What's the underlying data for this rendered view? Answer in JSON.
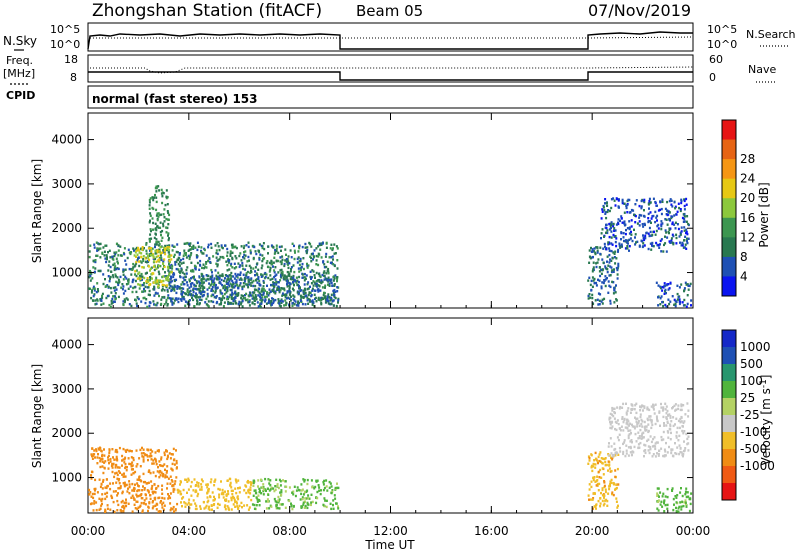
{
  "title": "Zhongshan Station (fitACF)",
  "beam": "Beam 05",
  "date": "07/Nov/2019",
  "cpid_text": "normal (fast stereo) 153",
  "left_labels": {
    "nsky": "N.Sky",
    "freq": "Freq.",
    "mhz": "[MHz]",
    "cpid": "CPID"
  },
  "right_labels": {
    "nsearch": "N.Search",
    "nave": "Nave"
  },
  "nsky_ticks": [
    "10^5",
    "10^0"
  ],
  "freq_ticks": [
    "18",
    "8"
  ],
  "nsearch_ticks": [
    "10^5",
    "10^0"
  ],
  "nave_ticks": [
    "60",
    "0"
  ],
  "x_tick_labels": [
    "00:00",
    "04:00",
    "08:00",
    "12:00",
    "16:00",
    "20:00",
    "00:00"
  ],
  "xlabel": "Time UT",
  "colors": {
    "power": [
      "#0a14f0",
      "#1e50b4",
      "#287850",
      "#3c9650",
      "#8cc83c",
      "#e6c814",
      "#f59614",
      "#e66414",
      "#e61414"
    ],
    "velocity": [
      "#e61414",
      "#f05a14",
      "#f08c14",
      "#f0be28",
      "#c8c8c8",
      "#b4d264",
      "#50b43c",
      "#28966e",
      "#1e50b4",
      "#1428c8"
    ]
  },
  "chart_data": [
    {
      "type": "heatmap",
      "name": "power",
      "ylabel": "Slant Range [km]",
      "yticks": [
        1000,
        2000,
        3000,
        4000
      ],
      "ylim": [
        200,
        4600
      ],
      "xlim": [
        0,
        24
      ],
      "colorbar": {
        "label": "Power [dB]",
        "ticks": [
          "4",
          "8",
          "12",
          "16",
          "20",
          "24",
          "28"
        ],
        "range": [
          0,
          32
        ]
      },
      "echo_regions": [
        {
          "t": [
            0.0,
            9.9
          ],
          "r": [
            250,
            1700
          ],
          "value": 10
        },
        {
          "t": [
            1.8,
            3.3
          ],
          "r": [
            700,
            1600
          ],
          "value": 20
        },
        {
          "t": [
            3.2,
            9.9
          ],
          "r": [
            300,
            1000
          ],
          "value": 8
        },
        {
          "t": [
            2.4,
            3.2
          ],
          "r": [
            1700,
            3000
          ],
          "value": 12
        },
        {
          "t": [
            19.8,
            21.0
          ],
          "r": [
            300,
            1600
          ],
          "value": 8
        },
        {
          "t": [
            20.3,
            23.8
          ],
          "r": [
            1500,
            2700
          ],
          "value": 6
        },
        {
          "t": [
            22.5,
            23.9
          ],
          "r": [
            250,
            800
          ],
          "value": 6
        }
      ]
    },
    {
      "type": "heatmap",
      "name": "velocity",
      "ylabel": "Slant Range [km]",
      "yticks": [
        1000,
        2000,
        3000,
        4000
      ],
      "ylim": [
        200,
        4600
      ],
      "xlim": [
        0,
        24
      ],
      "colorbar": {
        "label": "Velocity [m s-1]",
        "ticks": [
          "1000",
          "500",
          "100",
          "25",
          "-25",
          "-100",
          "-500",
          "-1000"
        ]
      },
      "echo_regions": [
        {
          "t": [
            0.0,
            3.5
          ],
          "r": [
            250,
            1700
          ],
          "value": -300
        },
        {
          "t": [
            3.5,
            6.5
          ],
          "r": [
            300,
            1000
          ],
          "value": -60
        },
        {
          "t": [
            6.5,
            9.9
          ],
          "r": [
            300,
            1000
          ],
          "value": 150
        },
        {
          "t": [
            19.8,
            21.0
          ],
          "r": [
            300,
            1600
          ],
          "value": -80
        },
        {
          "t": [
            20.6,
            23.8
          ],
          "r": [
            1500,
            2700
          ],
          "value": 0
        },
        {
          "t": [
            22.5,
            23.9
          ],
          "r": [
            250,
            800
          ],
          "value": 200
        }
      ]
    }
  ]
}
